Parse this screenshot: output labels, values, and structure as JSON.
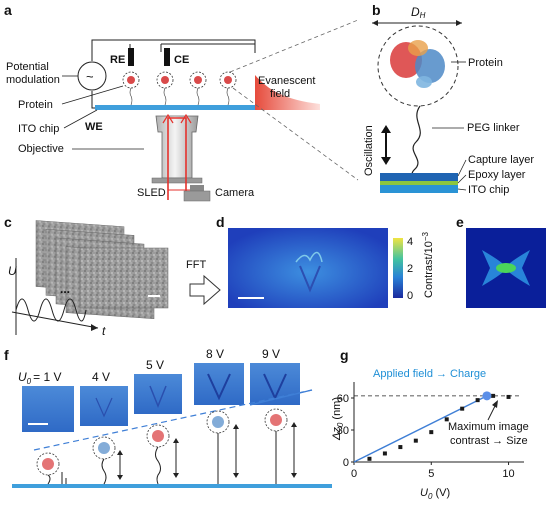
{
  "panels": {
    "a": {
      "letter": "a",
      "potential_modulation": [
        "Potential",
        "modulation"
      ],
      "re": "RE",
      "ce": "CE",
      "we": "WE",
      "protein": "Protein",
      "ito_chip": "ITO chip",
      "objective": "Objective",
      "sled": "SLED",
      "camera": "Camera",
      "evanescent": [
        "Evanescent",
        "field"
      ],
      "ac_symbol": "~"
    },
    "b": {
      "letter": "b",
      "dh": "D",
      "dh_sub": "H",
      "protein": "Protein",
      "peg": "PEG linker",
      "oscillation": "Oscillation",
      "capture": "Capture layer",
      "epoxy": "Epoxy layer",
      "ito": "ITO chip"
    },
    "c": {
      "letter": "c",
      "u": "U",
      "t": "t",
      "dots": "..."
    },
    "d": {
      "letter": "d",
      "fft": "FFT",
      "cb_top": "4",
      "cb_mid": "2",
      "cb_bottom": "0",
      "cb_label": "Contrast/10",
      "cb_exp": "−3"
    },
    "e": {
      "letter": "e"
    },
    "f": {
      "letter": "f",
      "u0_prefix": "U",
      "u0_sub": "0",
      "voltages": [
        "= 1 V",
        "4 V",
        "5 V",
        "8 V",
        "9 V"
      ]
    },
    "g": {
      "letter": "g",
      "applied": "Applied field → Charge",
      "max": [
        "Maximum image",
        "contrast → Size"
      ]
    }
  },
  "chart_data": {
    "type": "scatter",
    "x": [
      1,
      2,
      3,
      4,
      5,
      6,
      7,
      8,
      9,
      10
    ],
    "y": [
      3,
      8,
      14,
      20,
      28,
      40,
      50,
      58,
      62,
      61
    ],
    "fit_line": [
      [
        0,
        0
      ],
      [
        8.6,
        62
      ]
    ],
    "highlight_point": [
      8.6,
      62
    ],
    "dashed_level": 62,
    "xlim": [
      0,
      11
    ],
    "ylim": [
      0,
      75
    ],
    "xticks": [
      0,
      5,
      10
    ],
    "yticks": [
      0,
      30,
      60
    ],
    "xlabel": "U",
    "xlabel_sub": "0",
    "xlabel_unit": " (V)",
    "ylabel": "Δz",
    "ylabel_sub": "0",
    "ylabel_unit": " (nm)"
  },
  "colors": {
    "accent_blue": "#3f7fd6",
    "dark_blue": "#1f64b2",
    "laser_red": "#e5322d",
    "point_fill": "#1a1a1a",
    "highlight": "#5b8fe8"
  }
}
